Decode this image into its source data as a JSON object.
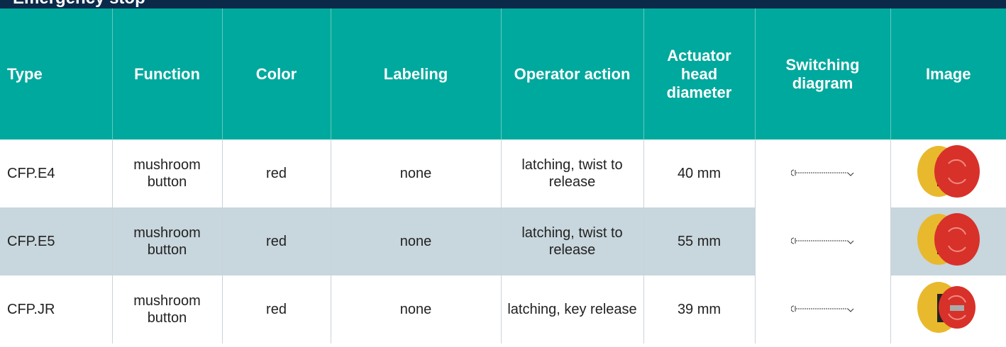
{
  "header": {
    "title": "Emergency stop"
  },
  "table": {
    "columns": [
      "Type",
      "Function",
      "Color",
      "Labeling",
      "Operator action",
      "Actuator head diameter",
      "Switching diagram",
      "Image"
    ],
    "rows": [
      [
        "CFP.E4",
        "mushroom button",
        "red",
        "none",
        "latching, twist to release",
        "40 mm"
      ],
      [
        "CFP.E5",
        "mushroom button",
        "red",
        "none",
        "latching, twist to release",
        "55 mm"
      ],
      [
        "CFP.JR",
        "mushroom button",
        "red",
        "none",
        "latching, key release",
        "39 mm"
      ]
    ]
  }
}
